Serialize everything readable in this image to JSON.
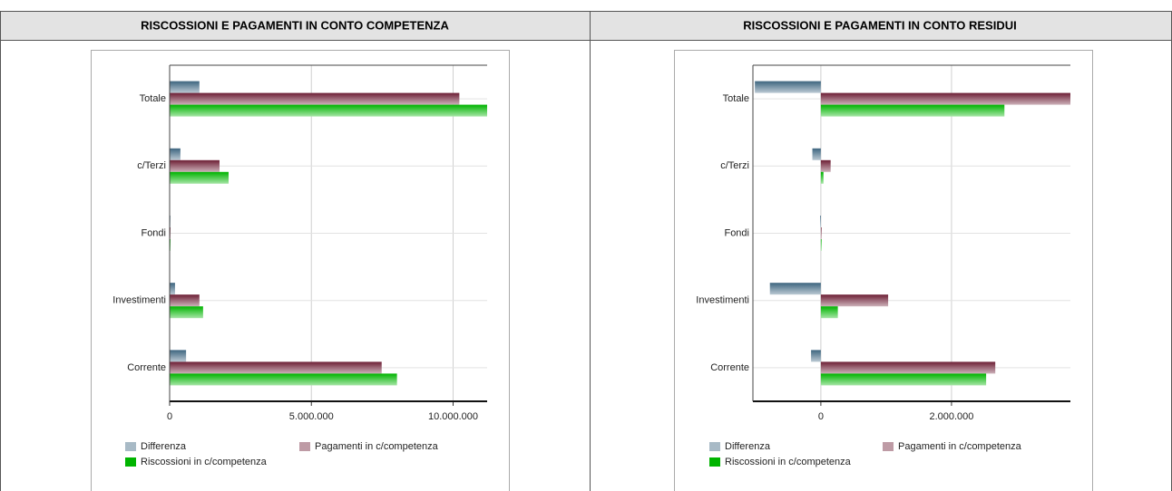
{
  "chart_data": [
    {
      "type": "bar",
      "orientation": "horizontal",
      "title": "RISCOSSIONI E PAGAMENTI IN CONTO COMPETENZA",
      "categories": [
        "Corrente",
        "Investimenti",
        "Fondi",
        "c/Terzi",
        "Totale"
      ],
      "series": [
        {
          "name": "Differenza",
          "color": "#3e6680",
          "values": [
            580000,
            190000,
            20000,
            380000,
            1050000
          ]
        },
        {
          "name": "Pagamenti in c/competenza",
          "color": "#6e2036",
          "values": [
            7480000,
            1050000,
            30000,
            1760000,
            10220000
          ]
        },
        {
          "name": "Riscossioni in c/competenza",
          "color": "#00b400",
          "values": [
            8020000,
            1180000,
            30000,
            2080000,
            11200000
          ]
        }
      ],
      "xlim": [
        0,
        11200000
      ],
      "xticks": [
        0,
        {
          "value": 5000000,
          "label": "5.000.000"
        },
        {
          "value": 10000000,
          "label": "10.000.000"
        }
      ],
      "grid": true,
      "legend": "bottom"
    },
    {
      "type": "bar",
      "orientation": "horizontal",
      "title": "RISCOSSIONI E PAGAMENTI IN CONTO RESIDUI",
      "categories": [
        "Corrente",
        "Investimenti",
        "Fondi",
        "c/Terzi",
        "Totale"
      ],
      "series": [
        {
          "name": "Differenza",
          "color": "#3e6680",
          "values": [
            -150000,
            -780000,
            -10000,
            -130000,
            -1010000
          ]
        },
        {
          "name": "Pagamenti in c/competenza",
          "color": "#6e2036",
          "values": [
            2670000,
            1030000,
            10000,
            150000,
            3820000
          ]
        },
        {
          "name": "Riscossioni in c/competenza",
          "color": "#00b400",
          "values": [
            2530000,
            260000,
            10000,
            40000,
            2810000
          ]
        }
      ],
      "xlim": [
        -1040000,
        3820000
      ],
      "xticks": [
        0,
        {
          "value": 2000000,
          "label": "2.000.000"
        }
      ],
      "grid": true,
      "legend": "bottom"
    }
  ]
}
